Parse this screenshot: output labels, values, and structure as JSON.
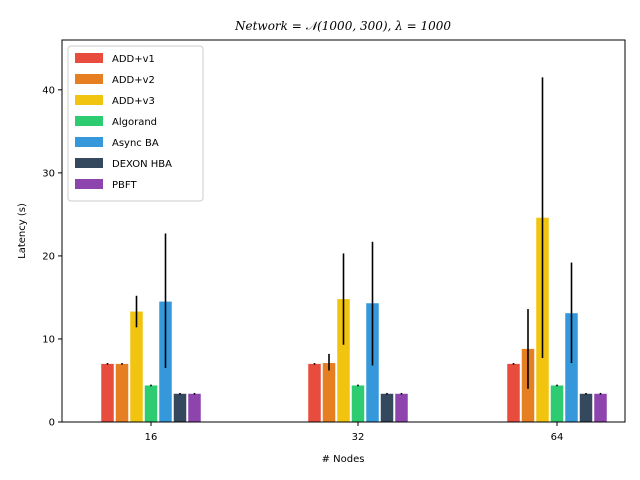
{
  "chart_data": {
    "type": "bar",
    "title": "Network = 𝒩(1000, 300), λ = 1000",
    "xlabel": "# Nodes",
    "ylabel": "Latency (s)",
    "categories": [
      "16",
      "32",
      "64"
    ],
    "ylim": [
      0,
      46
    ],
    "yticks": [
      0,
      10,
      20,
      30,
      40
    ],
    "legend_position": "top-left",
    "grid": false,
    "series": [
      {
        "name": "ADD+v1",
        "color": "#e74c3c",
        "values": [
          7.0,
          7.0,
          7.0
        ],
        "err_low": [
          6.9,
          6.9,
          6.9
        ],
        "err_high": [
          7.1,
          7.1,
          7.1
        ]
      },
      {
        "name": "ADD+v2",
        "color": "#e67e22",
        "values": [
          7.0,
          7.1,
          8.8
        ],
        "err_low": [
          6.9,
          6.2,
          4.0
        ],
        "err_high": [
          7.1,
          8.2,
          13.6
        ]
      },
      {
        "name": "ADD+v3",
        "color": "#f1c40f",
        "values": [
          13.3,
          14.8,
          24.6
        ],
        "err_low": [
          11.4,
          9.3,
          7.7
        ],
        "err_high": [
          15.2,
          20.3,
          41.5
        ]
      },
      {
        "name": "Algorand",
        "color": "#2ecc71",
        "values": [
          4.4,
          4.4,
          4.4
        ],
        "err_low": [
          4.3,
          4.3,
          4.3
        ],
        "err_high": [
          4.5,
          4.5,
          4.5
        ]
      },
      {
        "name": "Async BA",
        "color": "#3498db",
        "values": [
          14.5,
          14.3,
          13.1
        ],
        "err_low": [
          6.5,
          6.8,
          7.1
        ],
        "err_high": [
          22.7,
          21.7,
          19.2
        ]
      },
      {
        "name": "DEXON HBA",
        "color": "#34495e",
        "values": [
          3.4,
          3.4,
          3.4
        ],
        "err_low": [
          3.3,
          3.3,
          3.3
        ],
        "err_high": [
          3.5,
          3.5,
          3.5
        ]
      },
      {
        "name": "PBFT",
        "color": "#8e44ad",
        "values": [
          3.4,
          3.4,
          3.4
        ],
        "err_low": [
          3.3,
          3.3,
          3.3
        ],
        "err_high": [
          3.5,
          3.5,
          3.5
        ]
      }
    ]
  }
}
